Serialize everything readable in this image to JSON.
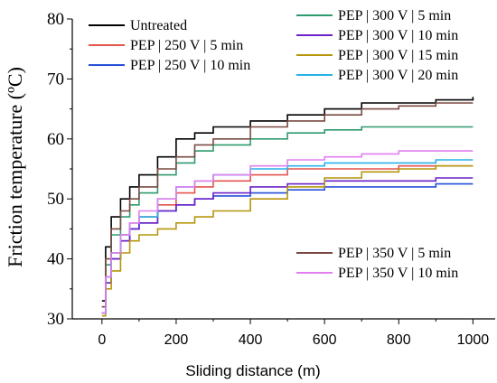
{
  "chart_data": {
    "type": "line",
    "title": "",
    "xlabel": "Sliding distance (m)",
    "ylabel": "Friction temperature (ºC)",
    "xlim": [
      -80,
      1060
    ],
    "ylim": [
      30,
      80
    ],
    "xticks": [
      0,
      200,
      400,
      600,
      800,
      1000
    ],
    "yticks": [
      30,
      40,
      50,
      60,
      70,
      80
    ],
    "grid": false,
    "legend_placement": "top-left, top-right and lower-right groups",
    "series": [
      {
        "name": "Untreated",
        "color": "#000000",
        "x": [
          0,
          10,
          25,
          50,
          75,
          100,
          150,
          200,
          250,
          300,
          400,
          500,
          600,
          700,
          800,
          900,
          1000
        ],
        "y": [
          33,
          42,
          47,
          50,
          52,
          54,
          57,
          60,
          61,
          62,
          63,
          64,
          65,
          66,
          66,
          66.5,
          67
        ]
      },
      {
        "name": "PEP | 250 V | 5 min",
        "color": "#e4534c",
        "x": [
          0,
          10,
          25,
          50,
          75,
          100,
          150,
          200,
          250,
          300,
          400,
          500,
          600,
          700,
          800,
          900,
          1000
        ],
        "y": [
          31,
          37,
          41,
          44,
          46,
          47,
          49,
          51,
          52,
          53,
          54,
          55,
          55,
          55,
          55.5,
          55.5,
          55.5
        ]
      },
      {
        "name": "PEP | 250 V | 10 min",
        "color": "#2650d8",
        "x": [
          0,
          10,
          25,
          50,
          75,
          100,
          150,
          200,
          250,
          300,
          400,
          500,
          600,
          700,
          800,
          900,
          1000
        ],
        "y": [
          31,
          36,
          40,
          43,
          45,
          46,
          48,
          49,
          50,
          50.5,
          51,
          51.5,
          52,
          52,
          52,
          52.5,
          52.5
        ]
      },
      {
        "name": "PEP | 300 V | 5 min",
        "color": "#2e9b6e",
        "x": [
          0,
          10,
          25,
          50,
          75,
          100,
          150,
          200,
          250,
          300,
          400,
          500,
          600,
          700,
          800,
          900,
          1000
        ],
        "y": [
          32,
          39,
          44,
          47,
          49,
          51,
          54,
          56,
          58,
          59,
          60,
          61,
          61.5,
          62,
          62,
          62,
          62
        ]
      },
      {
        "name": "PEP | 300 V | 10 min",
        "color": "#6a22c8",
        "x": [
          0,
          10,
          25,
          50,
          75,
          100,
          150,
          200,
          250,
          300,
          400,
          500,
          600,
          700,
          800,
          900,
          1000
        ],
        "y": [
          31,
          36,
          40,
          43,
          45,
          46,
          48,
          49,
          50,
          51,
          52,
          52.5,
          53,
          53,
          53,
          53.5,
          53.5
        ]
      },
      {
        "name": "PEP | 300 V | 15 min",
        "color": "#b6960c",
        "x": [
          0,
          10,
          25,
          50,
          75,
          100,
          150,
          200,
          250,
          300,
          400,
          500,
          600,
          700,
          800,
          900,
          1000
        ],
        "y": [
          30.5,
          35,
          38,
          41,
          43,
          44,
          45,
          46,
          47,
          48,
          50,
          52,
          53.5,
          54.5,
          55,
          55.5,
          55.5
        ]
      },
      {
        "name": "PEP | 300 V | 20 min",
        "color": "#27b2e8",
        "x": [
          0,
          10,
          25,
          50,
          75,
          100,
          150,
          200,
          250,
          300,
          400,
          500,
          600,
          700,
          800,
          900,
          1000
        ],
        "y": [
          31,
          37,
          41,
          44,
          46,
          47,
          50,
          52,
          53,
          54,
          55,
          55.5,
          56,
          56,
          56,
          56.5,
          56.5
        ]
      },
      {
        "name": "PEP | 350 V | 5 min",
        "color": "#7a4a42",
        "x": [
          0,
          10,
          25,
          50,
          75,
          100,
          150,
          200,
          250,
          300,
          400,
          500,
          600,
          700,
          800,
          900,
          1000
        ],
        "y": [
          32,
          40,
          45,
          48,
          50,
          52,
          55,
          57,
          59,
          60,
          62,
          63,
          64,
          65,
          65.5,
          66,
          66
        ]
      },
      {
        "name": "PEP | 350 V | 10 min",
        "color": "#e27ef0",
        "x": [
          0,
          10,
          25,
          50,
          75,
          100,
          150,
          200,
          250,
          300,
          400,
          500,
          600,
          700,
          800,
          900,
          1000
        ],
        "y": [
          31,
          37,
          41,
          44,
          46,
          48,
          50,
          52,
          53,
          54,
          55.5,
          56.5,
          57,
          57.5,
          58,
          58,
          58
        ]
      }
    ]
  }
}
